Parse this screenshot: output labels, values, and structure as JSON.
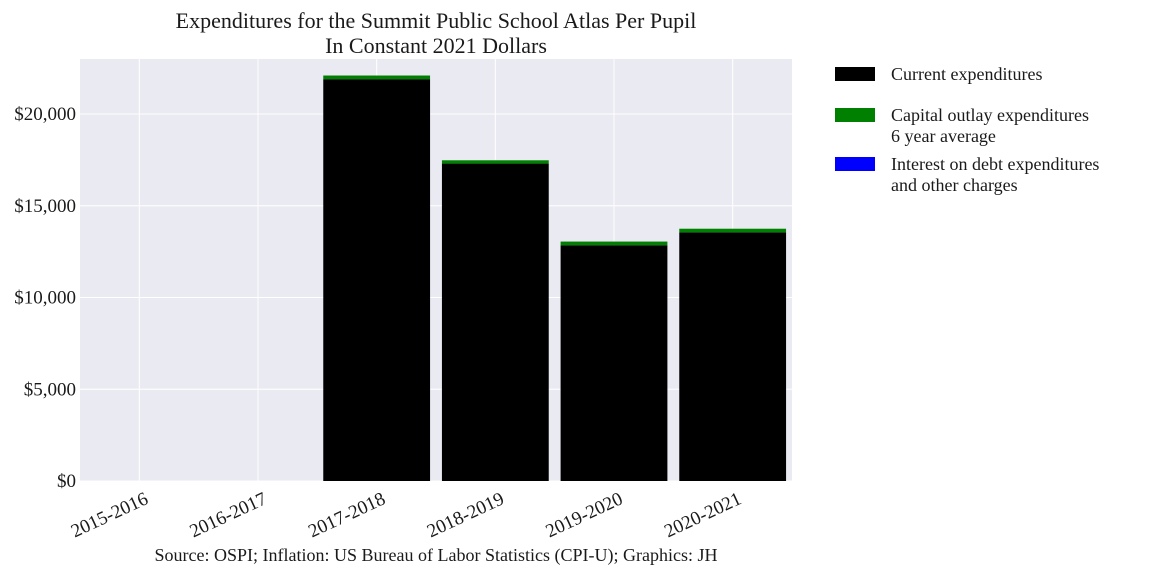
{
  "chart_data": {
    "type": "bar",
    "stacked": true,
    "title": "Expenditures for the Summit Public School Atlas Per Pupil",
    "subtitle": "In Constant 2021 Dollars",
    "xlabel": "",
    "ylabel": "",
    "categories": [
      "2015-2016",
      "2016-2017",
      "2017-2018",
      "2018-2019",
      "2019-2020",
      "2020-2021"
    ],
    "ylim": [
      0,
      23000
    ],
    "yticks": [
      0,
      5000,
      10000,
      15000,
      20000
    ],
    "ytick_labels": [
      "$0",
      "$5,000",
      "$10,000",
      "$15,000",
      "$20,000"
    ],
    "grid": true,
    "legend_position": "outside-right",
    "series": [
      {
        "name": "Current expenditures",
        "legend_lines": [
          "Current expenditures"
        ],
        "color": "#000000",
        "values": [
          0,
          0,
          21900,
          17300,
          12850,
          13550
        ]
      },
      {
        "name": "Capital outlay expenditures 6 year average",
        "legend_lines": [
          "Capital outlay expenditures",
          "6 year average"
        ],
        "color": "#008000",
        "values": [
          0,
          0,
          200,
          180,
          200,
          200
        ]
      },
      {
        "name": "Interest on debt expenditures and other charges",
        "legend_lines": [
          "Interest on debt expenditures",
          "and other charges"
        ],
        "color": "#0000ff",
        "values": [
          0,
          0,
          0,
          0,
          0,
          0
        ]
      }
    ],
    "source": "Source: OSPI; Inflation: US Bureau of Labor Statistics (CPI-U); Graphics: JH"
  },
  "colors": {
    "plot_background": "#eaeaf2",
    "gridline": "#ffffff"
  }
}
